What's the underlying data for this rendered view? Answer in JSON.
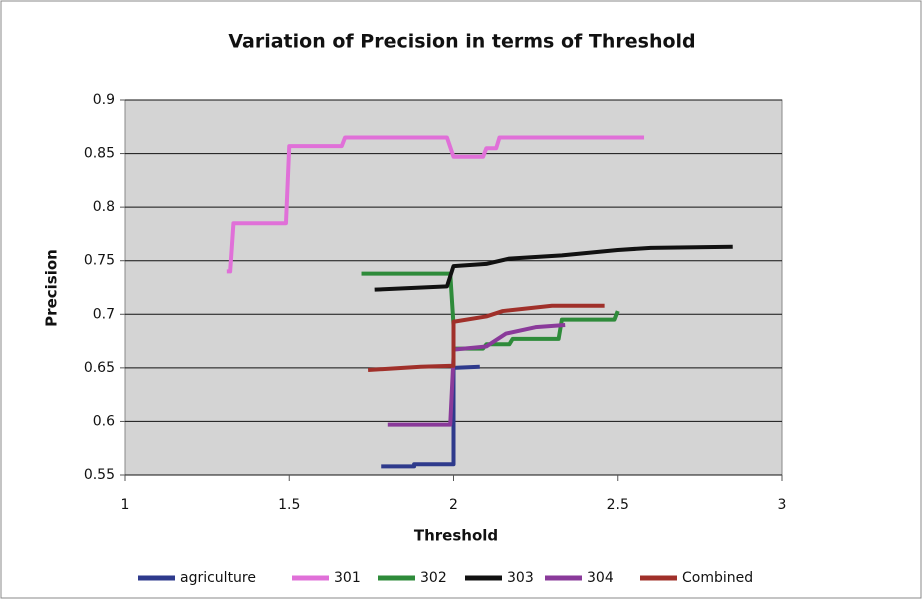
{
  "chart_data": {
    "type": "line",
    "title": "Variation of Precision in terms of Threshold",
    "x_label": "Threshold",
    "y_label": "Precision",
    "xlim": [
      1,
      3
    ],
    "xticks": [
      1,
      1.5,
      2,
      2.5,
      3
    ],
    "ylim": [
      0.55,
      0.9
    ],
    "yticks": [
      0.55,
      0.6,
      0.65,
      0.7,
      0.75,
      0.8,
      0.85,
      0.9
    ],
    "grid": true,
    "legend": "bottom",
    "series": [
      {
        "name": "agriculture",
        "color": "#2e3a8c",
        "x": [
          1.78,
          1.88,
          1.88,
          2.0,
          2.0,
          2.08
        ],
        "values": [
          0.558,
          0.558,
          0.56,
          0.56,
          0.65,
          0.651
        ]
      },
      {
        "name": "301",
        "color": "#e070d8",
        "x": [
          1.31,
          1.32,
          1.33,
          1.49,
          1.5,
          1.66,
          1.67,
          1.98,
          2.0,
          2.09,
          2.1,
          2.13,
          2.14,
          2.58
        ],
        "values": [
          0.74,
          0.74,
          0.785,
          0.785,
          0.857,
          0.857,
          0.865,
          0.865,
          0.847,
          0.847,
          0.855,
          0.855,
          0.865,
          0.865
        ]
      },
      {
        "name": "302",
        "color": "#2e8b3a",
        "x": [
          1.72,
          1.99,
          2.0,
          2.0,
          2.09,
          2.1,
          2.17,
          2.18,
          2.32,
          2.33,
          2.49,
          2.5
        ],
        "values": [
          0.738,
          0.738,
          0.69,
          0.668,
          0.668,
          0.672,
          0.672,
          0.677,
          0.677,
          0.695,
          0.695,
          0.703
        ]
      },
      {
        "name": "303",
        "color": "#111111",
        "x": [
          1.76,
          1.98,
          2.0,
          2.1,
          2.17,
          2.33,
          2.5,
          2.6,
          2.85
        ],
        "values": [
          0.723,
          0.726,
          0.745,
          0.747,
          0.752,
          0.755,
          0.76,
          0.762,
          0.763
        ]
      },
      {
        "name": "304",
        "color": "#8a3a9a",
        "x": [
          1.8,
          1.99,
          2.0,
          2.0,
          2.1,
          2.16,
          2.25,
          2.34
        ],
        "values": [
          0.597,
          0.597,
          0.66,
          0.667,
          0.67,
          0.682,
          0.688,
          0.69
        ]
      },
      {
        "name": "Combined",
        "color": "#a0302a",
        "x": [
          1.74,
          1.9,
          2.0,
          2.0,
          2.1,
          2.15,
          2.3,
          2.46
        ],
        "values": [
          0.648,
          0.651,
          0.652,
          0.693,
          0.698,
          0.703,
          0.708,
          0.708
        ]
      }
    ]
  }
}
